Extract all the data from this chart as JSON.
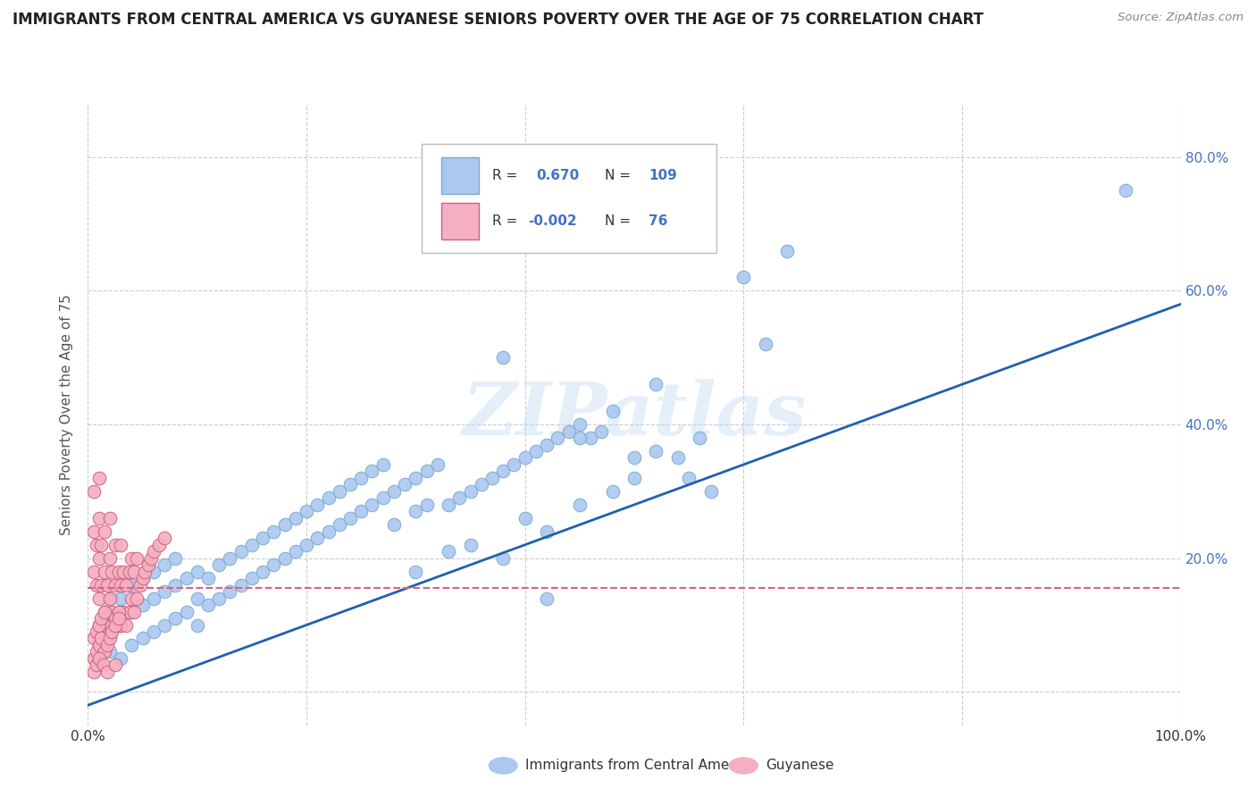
{
  "title": "IMMIGRANTS FROM CENTRAL AMERICA VS GUYANESE SENIORS POVERTY OVER THE AGE OF 75 CORRELATION CHART",
  "source": "Source: ZipAtlas.com",
  "ylabel": "Seniors Poverty Over the Age of 75",
  "xlim": [
    0.0,
    1.0
  ],
  "ylim": [
    -0.05,
    0.88
  ],
  "x_ticks": [
    0.0,
    0.2,
    0.4,
    0.6,
    0.8,
    1.0
  ],
  "x_tick_labels": [
    "0.0%",
    "",
    "",
    "",
    "",
    "100.0%"
  ],
  "y_ticks": [
    0.0,
    0.2,
    0.4,
    0.6,
    0.8
  ],
  "y_tick_labels": [
    "",
    "20.0%",
    "40.0%",
    "60.0%",
    "80.0%"
  ],
  "blue_R": 0.67,
  "blue_N": 109,
  "pink_R": -0.002,
  "pink_N": 76,
  "blue_color": "#aac8f0",
  "blue_edge": "#7aaad0",
  "blue_line": "#2060b0",
  "pink_color": "#f4b0c0",
  "pink_edge": "#d06080",
  "pink_line": "#e06080",
  "watermark": "ZIPatlas",
  "background_color": "#ffffff",
  "grid_color": "#cccccc",
  "axis_label_color": "#555555",
  "right_tick_color": "#4472c4",
  "legend_R_color": "#4472c4",
  "blue_line_x0": 0.0,
  "blue_line_y0": -0.02,
  "blue_line_x1": 1.0,
  "blue_line_y1": 0.58,
  "pink_line_x0": 0.0,
  "pink_line_y0": 0.155,
  "pink_line_x1": 1.0,
  "pink_line_y1": 0.155,
  "blue_scatter_x": [
    0.01,
    0.01,
    0.02,
    0.02,
    0.02,
    0.03,
    0.03,
    0.03,
    0.04,
    0.04,
    0.04,
    0.05,
    0.05,
    0.05,
    0.06,
    0.06,
    0.06,
    0.07,
    0.07,
    0.07,
    0.08,
    0.08,
    0.08,
    0.09,
    0.09,
    0.1,
    0.1,
    0.1,
    0.11,
    0.11,
    0.12,
    0.12,
    0.13,
    0.13,
    0.14,
    0.14,
    0.15,
    0.15,
    0.16,
    0.16,
    0.17,
    0.17,
    0.18,
    0.18,
    0.19,
    0.19,
    0.2,
    0.2,
    0.21,
    0.21,
    0.22,
    0.22,
    0.23,
    0.23,
    0.24,
    0.24,
    0.25,
    0.25,
    0.26,
    0.26,
    0.27,
    0.27,
    0.28,
    0.28,
    0.29,
    0.3,
    0.3,
    0.31,
    0.31,
    0.32,
    0.33,
    0.34,
    0.35,
    0.36,
    0.37,
    0.38,
    0.39,
    0.4,
    0.41,
    0.42,
    0.43,
    0.44,
    0.45,
    0.46,
    0.47,
    0.5,
    0.52,
    0.55,
    0.57,
    0.6,
    0.35,
    0.4,
    0.45,
    0.48,
    0.5,
    0.54,
    0.56,
    0.62,
    0.64,
    0.95,
    0.38,
    0.42,
    0.3,
    0.33,
    0.45,
    0.48,
    0.52,
    0.38,
    0.42
  ],
  "blue_scatter_y": [
    0.04,
    0.09,
    0.06,
    0.11,
    0.14,
    0.05,
    0.1,
    0.14,
    0.07,
    0.12,
    0.16,
    0.08,
    0.13,
    0.17,
    0.09,
    0.14,
    0.18,
    0.1,
    0.15,
    0.19,
    0.11,
    0.16,
    0.2,
    0.12,
    0.17,
    0.1,
    0.14,
    0.18,
    0.13,
    0.17,
    0.14,
    0.19,
    0.15,
    0.2,
    0.16,
    0.21,
    0.17,
    0.22,
    0.18,
    0.23,
    0.19,
    0.24,
    0.2,
    0.25,
    0.21,
    0.26,
    0.22,
    0.27,
    0.23,
    0.28,
    0.24,
    0.29,
    0.25,
    0.3,
    0.26,
    0.31,
    0.27,
    0.32,
    0.28,
    0.33,
    0.29,
    0.34,
    0.3,
    0.25,
    0.31,
    0.32,
    0.27,
    0.33,
    0.28,
    0.34,
    0.28,
    0.29,
    0.3,
    0.31,
    0.32,
    0.33,
    0.34,
    0.35,
    0.36,
    0.37,
    0.38,
    0.39,
    0.4,
    0.38,
    0.39,
    0.35,
    0.36,
    0.32,
    0.3,
    0.62,
    0.22,
    0.26,
    0.28,
    0.3,
    0.32,
    0.35,
    0.38,
    0.52,
    0.66,
    0.75,
    0.2,
    0.24,
    0.18,
    0.21,
    0.38,
    0.42,
    0.46,
    0.5,
    0.14
  ],
  "pink_scatter_x": [
    0.005,
    0.005,
    0.005,
    0.008,
    0.008,
    0.01,
    0.01,
    0.01,
    0.01,
    0.01,
    0.012,
    0.012,
    0.015,
    0.015,
    0.015,
    0.018,
    0.018,
    0.02,
    0.02,
    0.02,
    0.022,
    0.022,
    0.025,
    0.025,
    0.025,
    0.028,
    0.028,
    0.03,
    0.03,
    0.03,
    0.032,
    0.032,
    0.035,
    0.035,
    0.038,
    0.038,
    0.04,
    0.04,
    0.042,
    0.042,
    0.045,
    0.045,
    0.048,
    0.05,
    0.052,
    0.055,
    0.058,
    0.06,
    0.065,
    0.07,
    0.005,
    0.008,
    0.01,
    0.012,
    0.015,
    0.018,
    0.02,
    0.022,
    0.025,
    0.028,
    0.005,
    0.008,
    0.01,
    0.012,
    0.015,
    0.018,
    0.02,
    0.022,
    0.025,
    0.028,
    0.005,
    0.008,
    0.01,
    0.014,
    0.018,
    0.025
  ],
  "pink_scatter_y": [
    0.18,
    0.24,
    0.3,
    0.16,
    0.22,
    0.14,
    0.2,
    0.26,
    0.32,
    0.1,
    0.16,
    0.22,
    0.12,
    0.18,
    0.24,
    0.1,
    0.16,
    0.14,
    0.2,
    0.26,
    0.12,
    0.18,
    0.1,
    0.16,
    0.22,
    0.12,
    0.18,
    0.1,
    0.16,
    0.22,
    0.12,
    0.18,
    0.1,
    0.16,
    0.12,
    0.18,
    0.14,
    0.2,
    0.12,
    0.18,
    0.14,
    0.2,
    0.16,
    0.17,
    0.18,
    0.19,
    0.2,
    0.21,
    0.22,
    0.23,
    0.08,
    0.09,
    0.1,
    0.11,
    0.12,
    0.08,
    0.09,
    0.1,
    0.11,
    0.12,
    0.05,
    0.06,
    0.07,
    0.08,
    0.06,
    0.07,
    0.08,
    0.09,
    0.1,
    0.11,
    0.03,
    0.04,
    0.05,
    0.04,
    0.03,
    0.04
  ]
}
